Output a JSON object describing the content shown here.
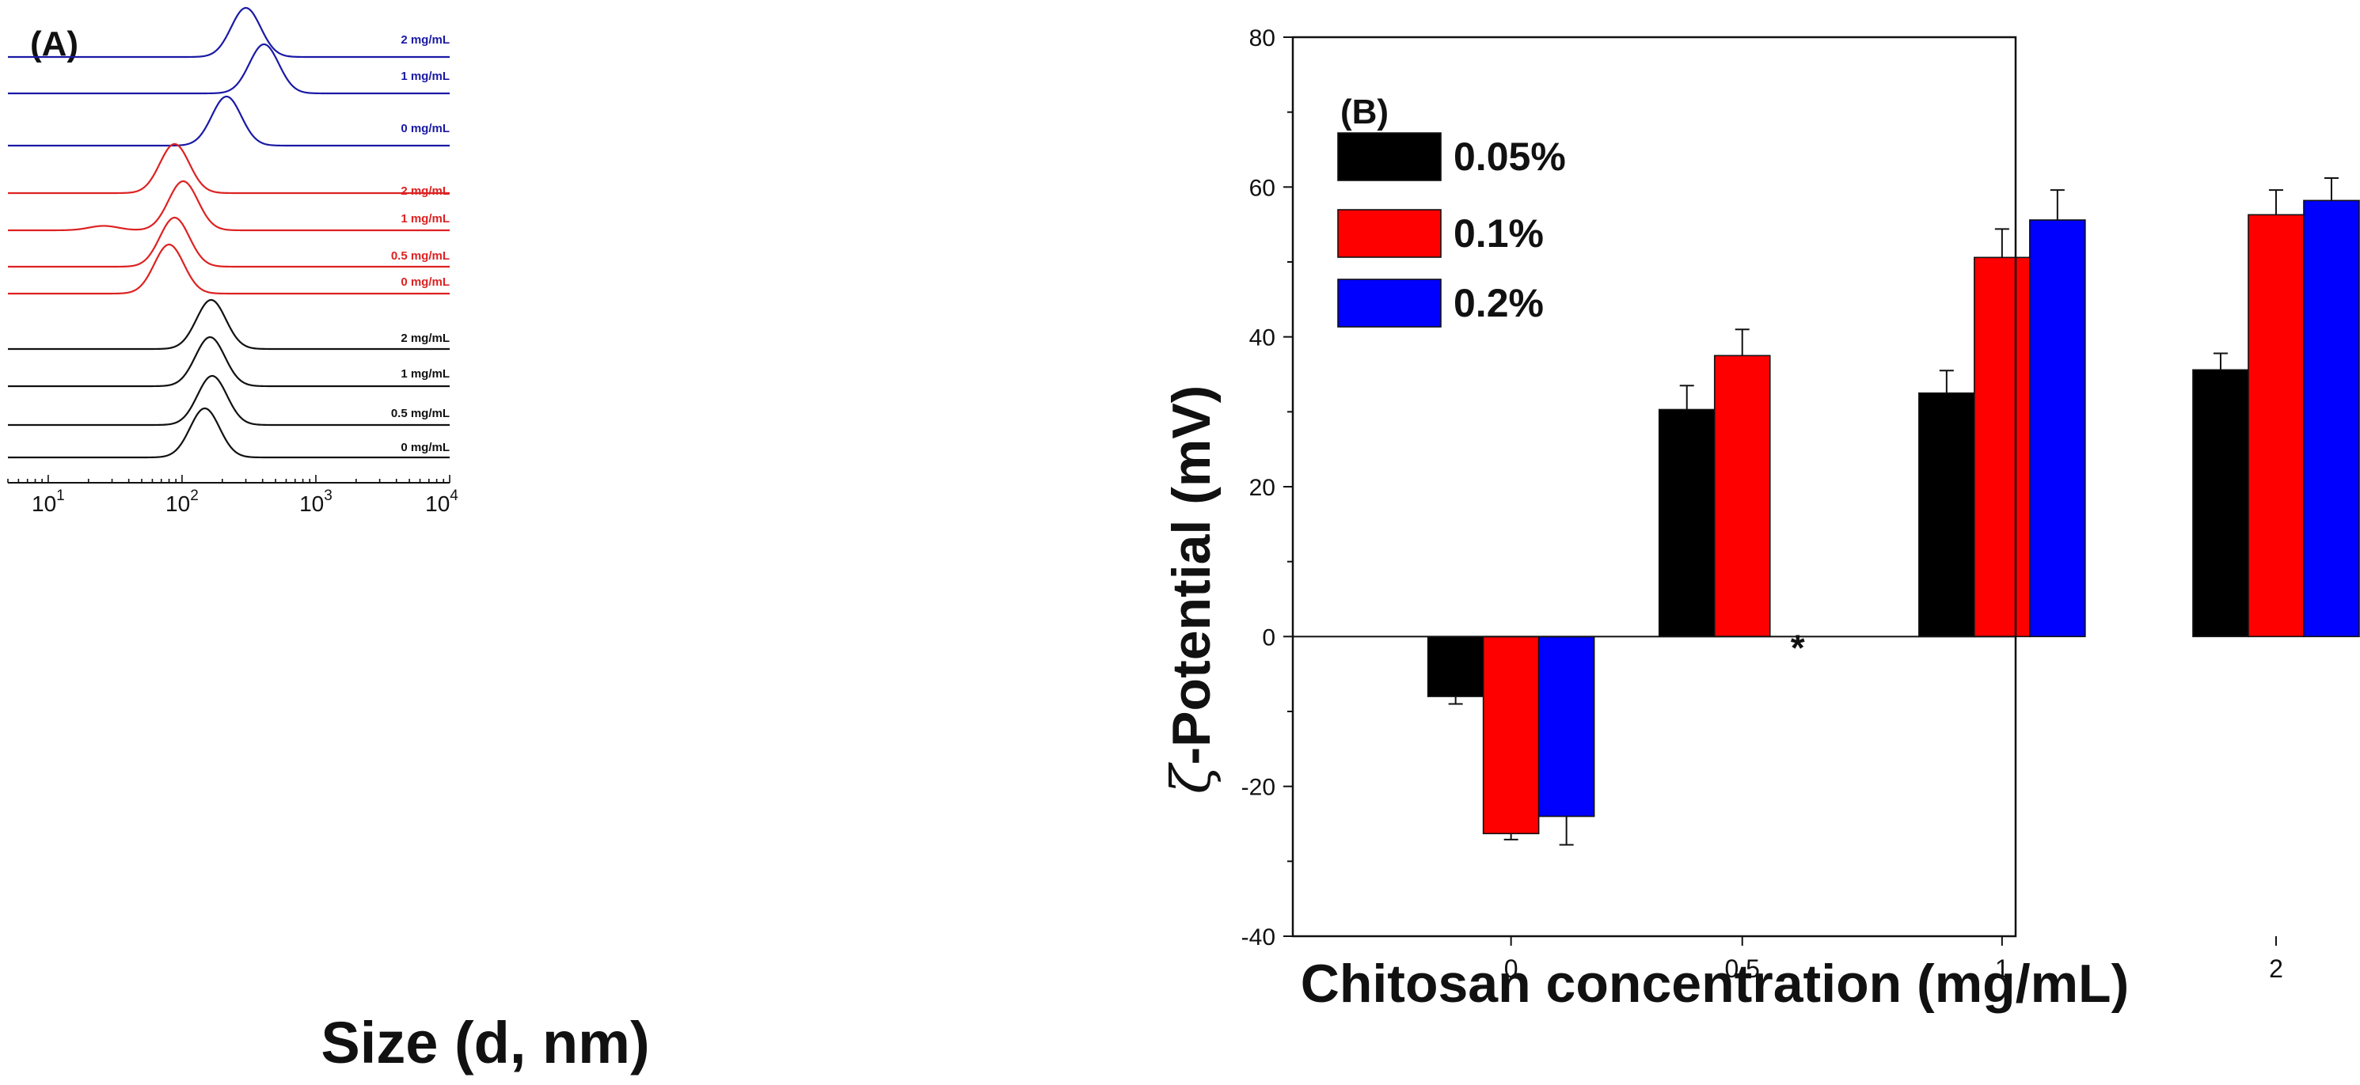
{
  "chart_data": [
    {
      "panel": "(A)",
      "type": "line",
      "xlabel": "Size (d, nm)",
      "xscale": "log",
      "xlim": [
        5,
        10000
      ],
      "xticks": [
        {
          "base": "10",
          "exp": "1",
          "value": 10
        },
        {
          "base": "10",
          "exp": "2",
          "value": 100
        },
        {
          "base": "10",
          "exp": "3",
          "value": 1000
        },
        {
          "base": "10",
          "exp": "4",
          "value": 10000
        }
      ],
      "series": [
        {
          "group": "blue",
          "color": "#1a1aa6",
          "label": "2 mg/mL",
          "peaks": [
            {
              "center": 300,
              "height": 1.0
            }
          ]
        },
        {
          "group": "blue",
          "color": "#1a1aa6",
          "label": "1 mg/mL",
          "peaks": [
            {
              "center": 410,
              "height": 1.0
            }
          ]
        },
        {
          "group": "blue",
          "color": "#1a1aa6",
          "label": "0 mg/mL",
          "peaks": [
            {
              "center": 215,
              "height": 1.0
            }
          ]
        },
        {
          "group": "red",
          "color": "#dd2222",
          "label": "2 mg/mL",
          "peaks": [
            {
              "center": 88,
              "height": 1.0
            }
          ]
        },
        {
          "group": "red",
          "color": "#dd2222",
          "label": "1 mg/mL",
          "peaks": [
            {
              "center": 102,
              "height": 1.0
            },
            {
              "center": 26,
              "height": 0.09
            }
          ]
        },
        {
          "group": "red",
          "color": "#dd2222",
          "label": "0.5 mg/mL",
          "peaks": [
            {
              "center": 88,
              "height": 1.0
            }
          ]
        },
        {
          "group": "red",
          "color": "#dd2222",
          "label": "0 mg/mL",
          "peaks": [
            {
              "center": 80,
              "height": 1.0
            }
          ]
        },
        {
          "group": "black",
          "color": "#111111",
          "label": "2 mg/mL",
          "peaks": [
            {
              "center": 165,
              "height": 1.0
            }
          ]
        },
        {
          "group": "black",
          "color": "#111111",
          "label": "1 mg/mL",
          "peaks": [
            {
              "center": 162,
              "height": 1.0
            }
          ]
        },
        {
          "group": "black",
          "color": "#111111",
          "label": "0.5 mg/mL",
          "peaks": [
            {
              "center": 168,
              "height": 1.0
            }
          ]
        },
        {
          "group": "black",
          "color": "#111111",
          "label": "0 mg/mL",
          "peaks": [
            {
              "center": 148,
              "height": 1.0
            }
          ]
        }
      ]
    },
    {
      "panel": "(B)",
      "type": "bar",
      "xlabel": "Chitosan concentration (mg/mL)",
      "ylabel_symbol": "ζ",
      "ylabel": "-Potential (mV)",
      "ylim": [
        -40,
        80
      ],
      "yticks": [
        -40,
        -20,
        0,
        20,
        40,
        60,
        80
      ],
      "categories": [
        "0",
        "0.5",
        "1",
        "2"
      ],
      "legend_position": "top-left",
      "annotation": {
        "text": "*",
        "category": "0.5",
        "series": "0.2%"
      },
      "series": [
        {
          "name": "0.05%",
          "color": "#000000",
          "values": [
            -8,
            30.3,
            32.5,
            35.6
          ],
          "errors": [
            1.0,
            3.2,
            3.0,
            2.2
          ]
        },
        {
          "name": "0.1%",
          "color": "#ff0000",
          "values": [
            -26.3,
            37.5,
            50.6,
            56.3
          ],
          "errors": [
            0.8,
            3.5,
            3.8,
            3.3
          ]
        },
        {
          "name": "0.2%",
          "color": "#0000ff",
          "values": [
            -24,
            null,
            55.6,
            58.2
          ],
          "errors": [
            3.8,
            null,
            4.0,
            3.0
          ]
        }
      ]
    }
  ]
}
